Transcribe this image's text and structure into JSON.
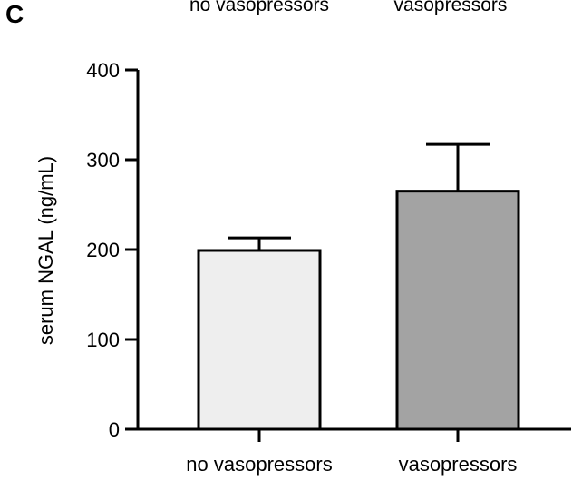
{
  "panel_label": "C",
  "header_labels": [
    "no vasopressors",
    "vasopressors"
  ],
  "chart_data": {
    "type": "bar",
    "categories": [
      "no vasopressors",
      "vasopressors"
    ],
    "values": [
      199,
      265
    ],
    "error_upper": [
      213,
      317
    ],
    "ylabel": "serum NGAL (ng/mL)",
    "xlabel": "",
    "ylim": [
      0,
      400
    ],
    "yticks": [
      0,
      100,
      200,
      300,
      400
    ],
    "bar_colors": [
      "#eeeeee",
      "#a3a3a3"
    ],
    "grid": false,
    "legend": "none"
  }
}
